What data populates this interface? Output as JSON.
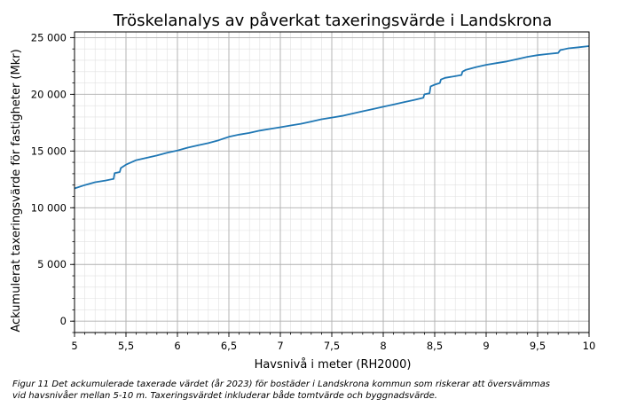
{
  "chart_data": {
    "type": "line",
    "title": "Tröskelanalys av påverkat taxeringsvärde i Landskrona",
    "xlabel": "Havsnivå i meter (RH2000)",
    "ylabel": "Ackumulerat taxeringsvärde för fastigheter (Mkr)",
    "xlim": [
      5,
      10
    ],
    "ylim": [
      -1000,
      25500
    ],
    "x_ticks": [
      5,
      5.5,
      6,
      6.5,
      7,
      7.5,
      8,
      8.5,
      9,
      9.5,
      10
    ],
    "x_tick_labels": [
      "5",
      "5,5",
      "6",
      "6,5",
      "7",
      "7,5",
      "8",
      "8,5",
      "9",
      "9,5",
      "10"
    ],
    "y_ticks": [
      0,
      5000,
      10000,
      15000,
      20000,
      25000
    ],
    "y_tick_labels": [
      "0",
      "5 000",
      "10 000",
      "15 000",
      "20 000",
      "25 000"
    ],
    "grid": true,
    "minor_grid": true,
    "legend": "none",
    "series_color": "#1f77b4",
    "series": [
      {
        "x": [
          5.0,
          5.1,
          5.2,
          5.3,
          5.38,
          5.39,
          5.44,
          5.45,
          5.5,
          5.6,
          5.7,
          5.8,
          5.9,
          6.0,
          6.1,
          6.2,
          6.3,
          6.4,
          6.5,
          6.6,
          6.7,
          6.8,
          6.9,
          7.0,
          7.1,
          7.2,
          7.3,
          7.4,
          7.5,
          7.6,
          7.7,
          7.8,
          7.9,
          8.0,
          8.1,
          8.2,
          8.3,
          8.39,
          8.4,
          8.45,
          8.46,
          8.5,
          8.55,
          8.56,
          8.6,
          8.7,
          8.76,
          8.77,
          8.8,
          8.9,
          9.0,
          9.1,
          9.2,
          9.3,
          9.4,
          9.5,
          9.6,
          9.7,
          9.72,
          9.8,
          9.9,
          10.0
        ],
        "y": [
          11700,
          12000,
          12250,
          12400,
          12550,
          13050,
          13150,
          13500,
          13800,
          14200,
          14400,
          14600,
          14850,
          15050,
          15300,
          15500,
          15700,
          15950,
          16250,
          16450,
          16600,
          16800,
          16950,
          17100,
          17250,
          17400,
          17600,
          17800,
          17950,
          18100,
          18300,
          18500,
          18700,
          18900,
          19100,
          19300,
          19500,
          19700,
          20000,
          20100,
          20700,
          20850,
          21000,
          21300,
          21450,
          21600,
          21700,
          22000,
          22150,
          22400,
          22600,
          22750,
          22900,
          23100,
          23300,
          23450,
          23550,
          23650,
          23900,
          24050,
          24150,
          24250
        ]
      }
    ],
    "caption_lines": [
      "Figur 11 Det ackumulerade taxerade värdet (år 2023) för bostäder i Landskrona kommun som riskerar att översvämmas",
      "vid havsnivåer mellan 5-10 m. Taxeringsvärdet inkluderar både tomtvärde och byggnadsvärde."
    ]
  }
}
